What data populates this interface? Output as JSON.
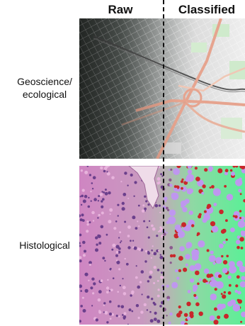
{
  "headers": {
    "raw": "Raw",
    "classified": "Classified"
  },
  "rows": [
    {
      "label_line1": "Geoscience/",
      "label_line2": "ecological"
    },
    {
      "label_line1": "Histological"
    }
  ],
  "colors": {
    "map_background": "#eeeeee",
    "map_roads": "#e6a48f",
    "map_green": "#cfeacc",
    "tissue_pink": "#cf85c2",
    "class_green": "#5cef97",
    "class_purple": "#bf97ef",
    "class_red": "#c8272b"
  }
}
